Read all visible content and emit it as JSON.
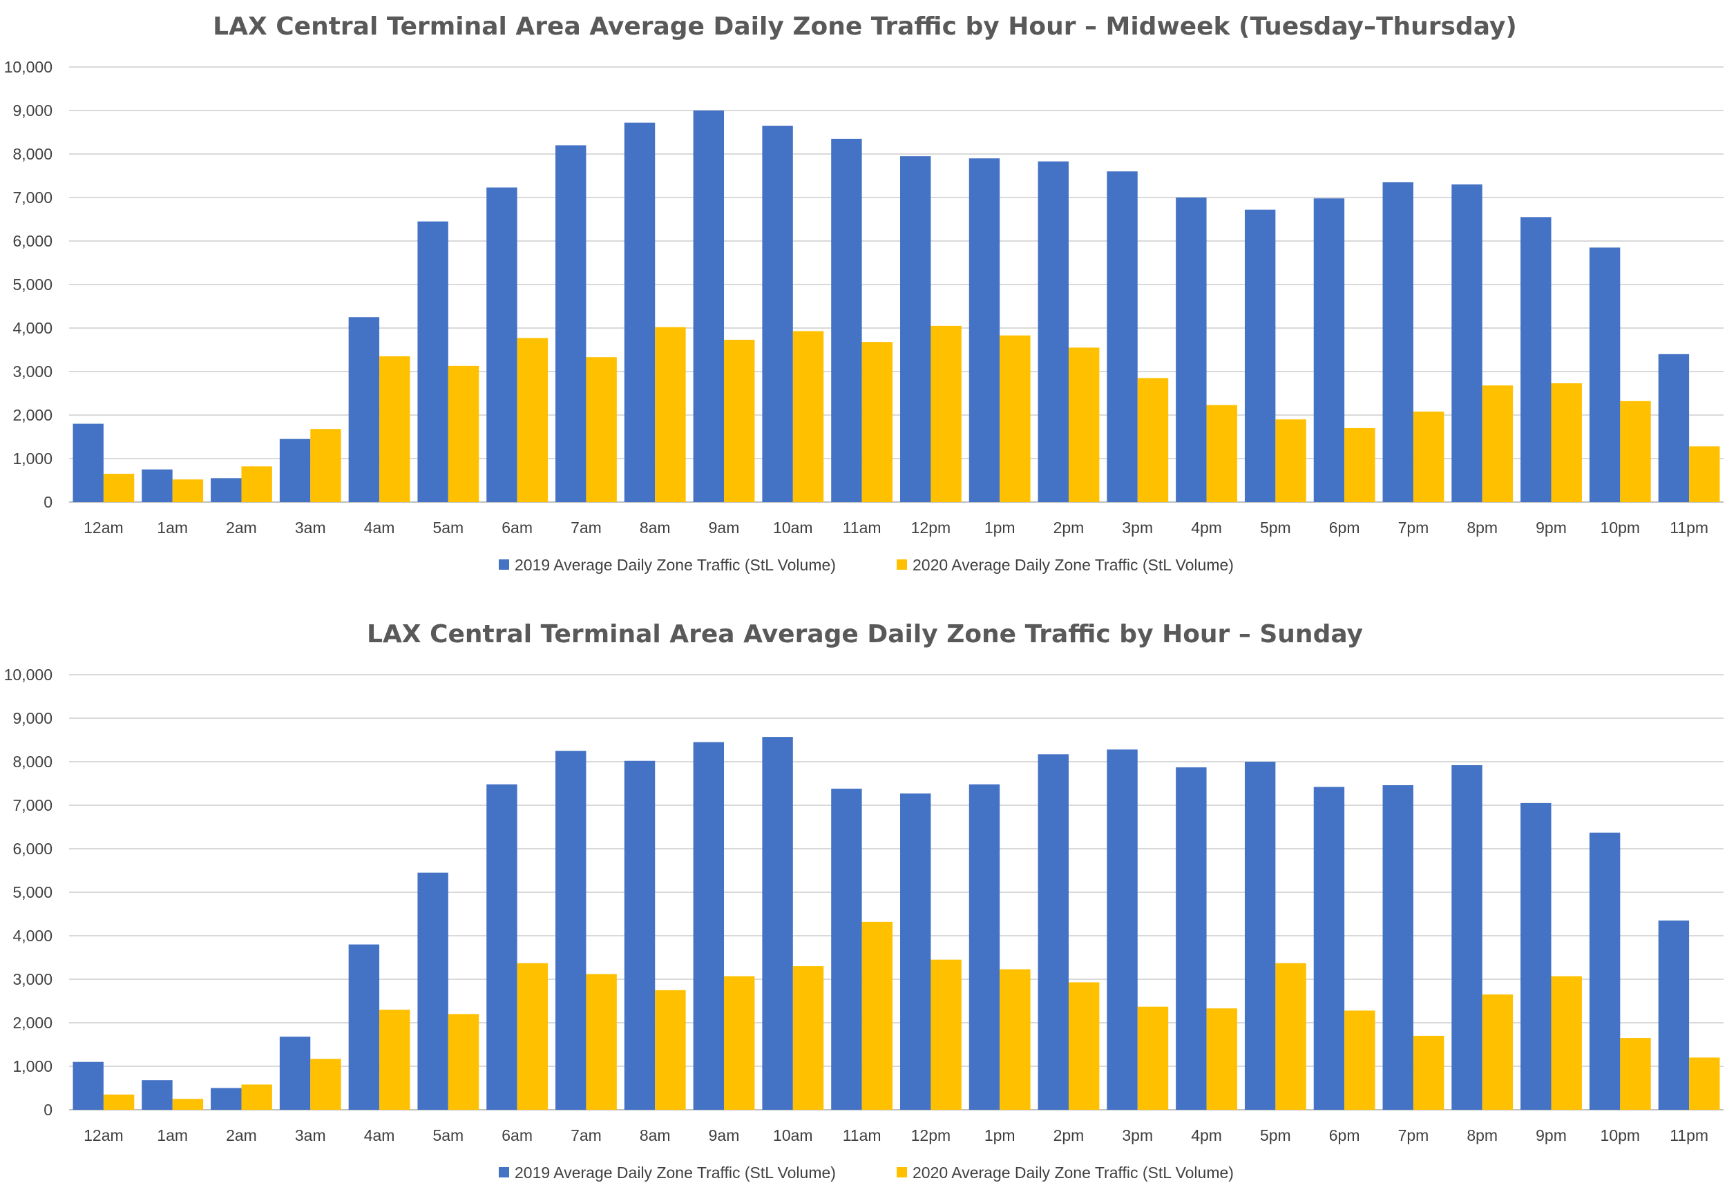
{
  "colors": {
    "series_2019": "#4472C4",
    "series_2020": "#FFC000",
    "grid": "#D9D9D9",
    "text": "#404040",
    "title": "#595959"
  },
  "chart_data": [
    {
      "type": "bar",
      "title": "LAX Central Terminal Area Average Daily Zone Traffic by Hour – Midweek (Tuesday–Thursday)",
      "xlabel": "",
      "ylabel": "",
      "ylim": [
        0,
        10000
      ],
      "yticks": [
        "0",
        "1,000",
        "2,000",
        "3,000",
        "4,000",
        "5,000",
        "6,000",
        "7,000",
        "8,000",
        "9,000",
        "10,000"
      ],
      "grid": true,
      "legend_position": "bottom",
      "categories": [
        "12am",
        "1am",
        "2am",
        "3am",
        "4am",
        "5am",
        "6am",
        "7am",
        "8am",
        "9am",
        "10am",
        "11am",
        "12pm",
        "1pm",
        "2pm",
        "3pm",
        "4pm",
        "5pm",
        "6pm",
        "7pm",
        "8pm",
        "9pm",
        "10pm",
        "11pm"
      ],
      "series": [
        {
          "name": "2019 Average Daily Zone Traffic (StL Volume)",
          "color": "#4472C4",
          "values": [
            1800,
            750,
            550,
            1450,
            4250,
            6450,
            7230,
            8200,
            8720,
            9000,
            8650,
            8350,
            7950,
            7900,
            7830,
            7600,
            7000,
            6720,
            6980,
            7350,
            7300,
            6550,
            5850,
            3400
          ]
        },
        {
          "name": "2020 Average Daily Zone Traffic (StL Volume)",
          "color": "#FFC000",
          "values": [
            650,
            520,
            820,
            1680,
            3350,
            3130,
            3770,
            3330,
            4020,
            3730,
            3930,
            3680,
            4050,
            3830,
            3550,
            2850,
            2230,
            1900,
            1700,
            2080,
            2680,
            2730,
            2320,
            1280
          ]
        }
      ]
    },
    {
      "type": "bar",
      "title": "LAX Central Terminal Area Average Daily Zone Traffic by Hour – Sunday",
      "xlabel": "",
      "ylabel": "",
      "ylim": [
        0,
        10000
      ],
      "yticks": [
        "0",
        "1,000",
        "2,000",
        "3,000",
        "4,000",
        "5,000",
        "6,000",
        "7,000",
        "8,000",
        "9,000",
        "10,000"
      ],
      "grid": true,
      "legend_position": "bottom",
      "categories": [
        "12am",
        "1am",
        "2am",
        "3am",
        "4am",
        "5am",
        "6am",
        "7am",
        "8am",
        "9am",
        "10am",
        "11am",
        "12pm",
        "1pm",
        "2pm",
        "3pm",
        "4pm",
        "5pm",
        "6pm",
        "7pm",
        "8pm",
        "9pm",
        "10pm",
        "11pm"
      ],
      "series": [
        {
          "name": "2019 Average Daily Zone Traffic (StL Volume)",
          "color": "#4472C4",
          "values": [
            1100,
            680,
            500,
            1680,
            3800,
            5450,
            7480,
            8250,
            8020,
            8450,
            8570,
            7380,
            7270,
            7480,
            8170,
            8280,
            7870,
            8000,
            7420,
            7460,
            7920,
            7050,
            6370,
            4350
          ]
        },
        {
          "name": "2020 Average Daily Zone Traffic (StL Volume)",
          "color": "#FFC000",
          "values": [
            350,
            250,
            580,
            1170,
            2300,
            2200,
            3370,
            3120,
            2750,
            3070,
            3300,
            4320,
            3450,
            3230,
            2930,
            2370,
            2330,
            3370,
            2280,
            1700,
            2650,
            3070,
            1650,
            1200
          ]
        }
      ]
    }
  ]
}
